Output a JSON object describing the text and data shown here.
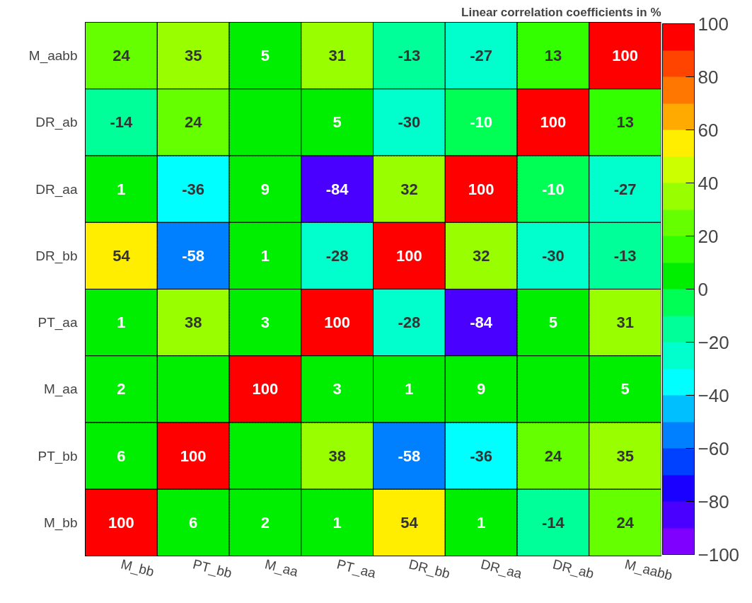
{
  "chart_data": {
    "type": "heatmap",
    "title": "Linear correlation coefficients in %",
    "categories": [
      "M_bb",
      "PT_bb",
      "M_aa",
      "PT_aa",
      "DR_bb",
      "DR_aa",
      "DR_ab",
      "M_aabb"
    ],
    "y_categories": [
      "M_aabb",
      "DR_ab",
      "DR_aa",
      "DR_bb",
      "PT_aa",
      "M_aa",
      "PT_bb",
      "M_bb"
    ],
    "cells": [
      [
        24,
        35,
        5,
        31,
        -13,
        -27,
        13,
        100
      ],
      [
        -14,
        24,
        0,
        5,
        -30,
        -10,
        100,
        13
      ],
      [
        1,
        -36,
        9,
        -84,
        32,
        100,
        -10,
        -27
      ],
      [
        54,
        -58,
        1,
        -28,
        100,
        32,
        -30,
        -13
      ],
      [
        1,
        38,
        3,
        100,
        -28,
        -84,
        5,
        31
      ],
      [
        2,
        0,
        100,
        3,
        1,
        9,
        0,
        5
      ],
      [
        6,
        100,
        0,
        38,
        -58,
        -36,
        24,
        35
      ],
      [
        100,
        6,
        2,
        1,
        54,
        1,
        -14,
        24
      ]
    ],
    "cell_labels": [
      [
        "24",
        "35",
        "5",
        "31",
        "-13",
        "-27",
        "13",
        "100"
      ],
      [
        "-14",
        "24",
        null,
        "5",
        "-30",
        "-10",
        "100",
        "13"
      ],
      [
        "1",
        "-36",
        "9",
        "-84",
        "32",
        "100",
        "-10",
        "-27"
      ],
      [
        "54",
        "-58",
        "1",
        "-28",
        "100",
        "32",
        "-30",
        "-13"
      ],
      [
        "1",
        "38",
        "3",
        "100",
        "-28",
        "-84",
        "5",
        "31"
      ],
      [
        "2",
        null,
        "100",
        "3",
        "1",
        "9",
        null,
        "5"
      ],
      [
        "6",
        "100",
        null,
        "38",
        "-58",
        "-36",
        "24",
        "35"
      ],
      [
        "100",
        "6",
        "2",
        "1",
        "54",
        "1",
        "-14",
        "24"
      ]
    ],
    "colors": [
      "#8000ff",
      "#4a00ff",
      "#1a00ff",
      "#0040ff",
      "#0080ff",
      "#00bfff",
      "#00ffff",
      "#00ffcc",
      "#00ff99",
      "#00ff55",
      "#00ee00",
      "#33ff00",
      "#66ff00",
      "#99ff00",
      "#ccff00",
      "#ffee00",
      "#ffaa00",
      "#ff7700",
      "#ff4400",
      "#ff0000"
    ],
    "clim": [
      -100,
      100
    ],
    "cticks": [
      {
        "value": -100,
        "label": "−100"
      },
      {
        "value": -80,
        "label": "−80"
      },
      {
        "value": -60,
        "label": "−60"
      },
      {
        "value": -40,
        "label": "−40"
      },
      {
        "value": -20,
        "label": "−20"
      },
      0,
      20,
      40,
      60,
      80,
      100
    ],
    "grid": true
  }
}
